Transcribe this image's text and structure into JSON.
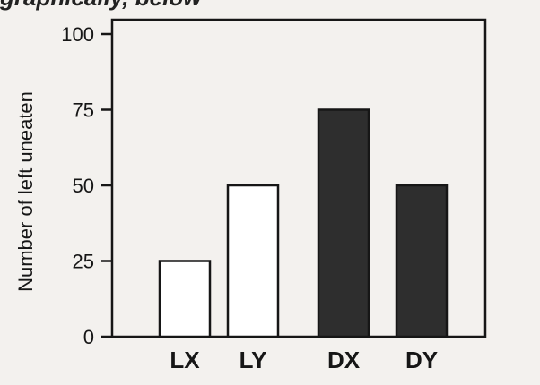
{
  "header": {
    "caption_fragment": "graphically, below"
  },
  "chart_data": {
    "type": "bar",
    "title": "",
    "xlabel": "",
    "ylabel": "Number of left uneaten",
    "ylim": [
      0,
      100
    ],
    "yticks": [
      "0",
      "25",
      "50",
      "75",
      "100"
    ],
    "grid": false,
    "categories": [
      "LX",
      "LY",
      "DX",
      "DY"
    ],
    "values": [
      25,
      50,
      75,
      50
    ],
    "bar_fill": [
      "#ffffff",
      "#ffffff",
      "#2e2e2e",
      "#2e2e2e"
    ],
    "legend": "none"
  },
  "colors": {
    "ink": "#161616",
    "paper": "#f3f1ee"
  }
}
